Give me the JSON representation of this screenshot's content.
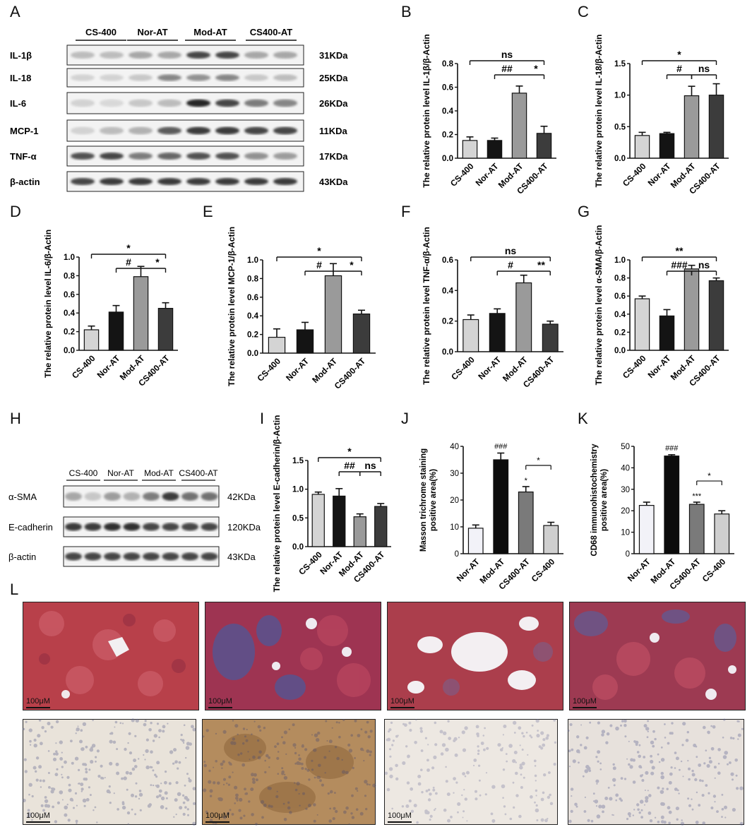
{
  "letters": {
    "A": "A",
    "B": "B",
    "C": "C",
    "D": "D",
    "E": "E",
    "F": "F",
    "G": "G",
    "H": "H",
    "I": "I",
    "J": "J",
    "K": "K",
    "L": "L"
  },
  "blotA": {
    "groups": [
      "CS-400",
      "Nor-AT",
      "Mod-AT",
      "CS400-AT"
    ],
    "proteins": [
      "IL-1β",
      "IL-18",
      "IL-6",
      "MCP-1",
      "TNF-α",
      "β-actin"
    ],
    "sizes": [
      "31KDa",
      "25KDa",
      "26KDa",
      "11KDa",
      "17KDa",
      "43KDa"
    ]
  },
  "blotH": {
    "groups": [
      "CS-400",
      "Nor-AT",
      "Mod-AT",
      "CS400-AT"
    ],
    "proteins": [
      "α-SMA",
      "E-cadherin",
      "β-actin"
    ],
    "sizes": [
      "42KDa",
      "120KDa",
      "43KDa"
    ]
  },
  "micro": {
    "scale_label": "100μM",
    "scale_label_alt": "100μM"
  },
  "colors": {
    "cs400": "#d4d4d4",
    "norat": "#141414",
    "modat": "#9a9a9a",
    "cs400at": "#3c3c3c",
    "j_norat": "#f2f2f8",
    "j_modat": "#0c0c0c",
    "j_cs400at": "#7a7a7a",
    "j_cs400": "#cfcfcf"
  },
  "chart_data": [
    {
      "id": "B",
      "type": "bar",
      "ylabel": "The relative protein level IL-1β/β-Actin",
      "categories": [
        "CS-400",
        "Nor-AT",
        "Mod-AT",
        "CS400-AT"
      ],
      "values": [
        0.15,
        0.15,
        0.55,
        0.21
      ],
      "errors": [
        0.03,
        0.02,
        0.06,
        0.06
      ],
      "ylim": [
        0,
        0.8
      ],
      "ticks": [
        "0.0",
        "0.2",
        "0.4",
        "0.6",
        "0.8"
      ],
      "annotations": [
        "ns",
        "##",
        "*"
      ]
    },
    {
      "id": "C",
      "type": "bar",
      "ylabel": "The relative protein level IL-18/β-Actin",
      "categories": [
        "CS-400",
        "Nor-AT",
        "Mod-AT",
        "CS400-AT"
      ],
      "values": [
        0.36,
        0.39,
        0.99,
        1.0
      ],
      "errors": [
        0.05,
        0.02,
        0.15,
        0.18
      ],
      "ylim": [
        0,
        1.5
      ],
      "ticks": [
        "0.0",
        "0.5",
        "1.0",
        "1.5"
      ],
      "annotations": [
        "*",
        "#",
        "ns"
      ]
    },
    {
      "id": "D",
      "type": "bar",
      "ylabel": "The relative protein level IL-6/β-Actin",
      "categories": [
        "CS-400",
        "Nor-AT",
        "Mod-AT",
        "CS400-AT"
      ],
      "values": [
        0.22,
        0.41,
        0.79,
        0.45
      ],
      "errors": [
        0.04,
        0.07,
        0.11,
        0.06
      ],
      "ylim": [
        0,
        1.0
      ],
      "ticks": [
        "0.0",
        "0.2",
        "0.4",
        "0.6",
        "0.8",
        "1.0"
      ],
      "annotations": [
        "*",
        "#",
        "*"
      ]
    },
    {
      "id": "E",
      "type": "bar",
      "ylabel": "The relative protein level MCP-1/β-Actin",
      "categories": [
        "CS-400",
        "Nor-AT",
        "Mod-AT",
        "CS400-AT"
      ],
      "values": [
        0.17,
        0.25,
        0.83,
        0.42
      ],
      "errors": [
        0.09,
        0.08,
        0.13,
        0.04
      ],
      "ylim": [
        0,
        1.0
      ],
      "ticks": [
        "0.0",
        "0.2",
        "0.4",
        "0.6",
        "0.8",
        "1.0"
      ],
      "annotations": [
        "*",
        "#",
        "*"
      ]
    },
    {
      "id": "F",
      "type": "bar",
      "ylabel": "The relative protein level TNF-α/β-Actin",
      "categories": [
        "CS-400",
        "Nor-AT",
        "Mod-AT",
        "CS400-AT"
      ],
      "values": [
        0.21,
        0.25,
        0.45,
        0.18
      ],
      "errors": [
        0.03,
        0.03,
        0.05,
        0.02
      ],
      "ylim": [
        0,
        0.6
      ],
      "ticks": [
        "0.0",
        "0.2",
        "0.4",
        "0.6"
      ],
      "annotations": [
        "ns",
        "#",
        "**"
      ]
    },
    {
      "id": "G",
      "type": "bar",
      "ylabel": "The relative protein level α-SMA/β-Actin",
      "categories": [
        "CS-400",
        "Nor-AT",
        "Mod-AT",
        "CS400-AT"
      ],
      "values": [
        0.57,
        0.38,
        0.9,
        0.77
      ],
      "errors": [
        0.03,
        0.07,
        0.04,
        0.03
      ],
      "ylim": [
        0,
        1.0
      ],
      "ticks": [
        "0.0",
        "0.2",
        "0.4",
        "0.6",
        "0.8",
        "1.0"
      ],
      "annotations": [
        "**",
        "###",
        "ns"
      ]
    },
    {
      "id": "I",
      "type": "bar",
      "ylabel": "The relative protein level E-cadherin/β-Actin",
      "categories": [
        "CS-400",
        "Nor-AT",
        "Mod-AT",
        "CS400-AT"
      ],
      "values": [
        0.91,
        0.88,
        0.52,
        0.7
      ],
      "errors": [
        0.04,
        0.13,
        0.05,
        0.05
      ],
      "ylim": [
        0,
        1.5
      ],
      "ticks": [
        "0.0",
        "0.5",
        "1.0",
        "1.5"
      ],
      "annotations": [
        "*",
        "##",
        "ns"
      ]
    },
    {
      "id": "J",
      "type": "bar",
      "ylabel": "Masson trichrome staining positive area(%)",
      "categories": [
        "Nor-AT",
        "Mod-AT",
        "CS400-AT",
        "CS-400"
      ],
      "values": [
        9.5,
        35,
        23,
        10.5
      ],
      "errors": [
        1.2,
        2.5,
        2.0,
        1.2
      ],
      "ylim": [
        0,
        40
      ],
      "ticks": [
        "0",
        "10",
        "20",
        "30",
        "40"
      ],
      "annotations": [
        "###",
        "*",
        "*"
      ]
    },
    {
      "id": "K",
      "type": "bar",
      "ylabel": "CD68 immunohistochemistry positive area(%)",
      "categories": [
        "Nor-AT",
        "Mod-AT",
        "CS400-AT",
        "CS-400"
      ],
      "values": [
        22.5,
        45.5,
        23,
        18.5
      ],
      "errors": [
        1.5,
        0.6,
        1.0,
        1.5
      ],
      "ylim": [
        0,
        50
      ],
      "ticks": [
        "0",
        "10",
        "20",
        "30",
        "40",
        "50"
      ],
      "annotations": [
        "###",
        "***",
        "*"
      ]
    }
  ]
}
